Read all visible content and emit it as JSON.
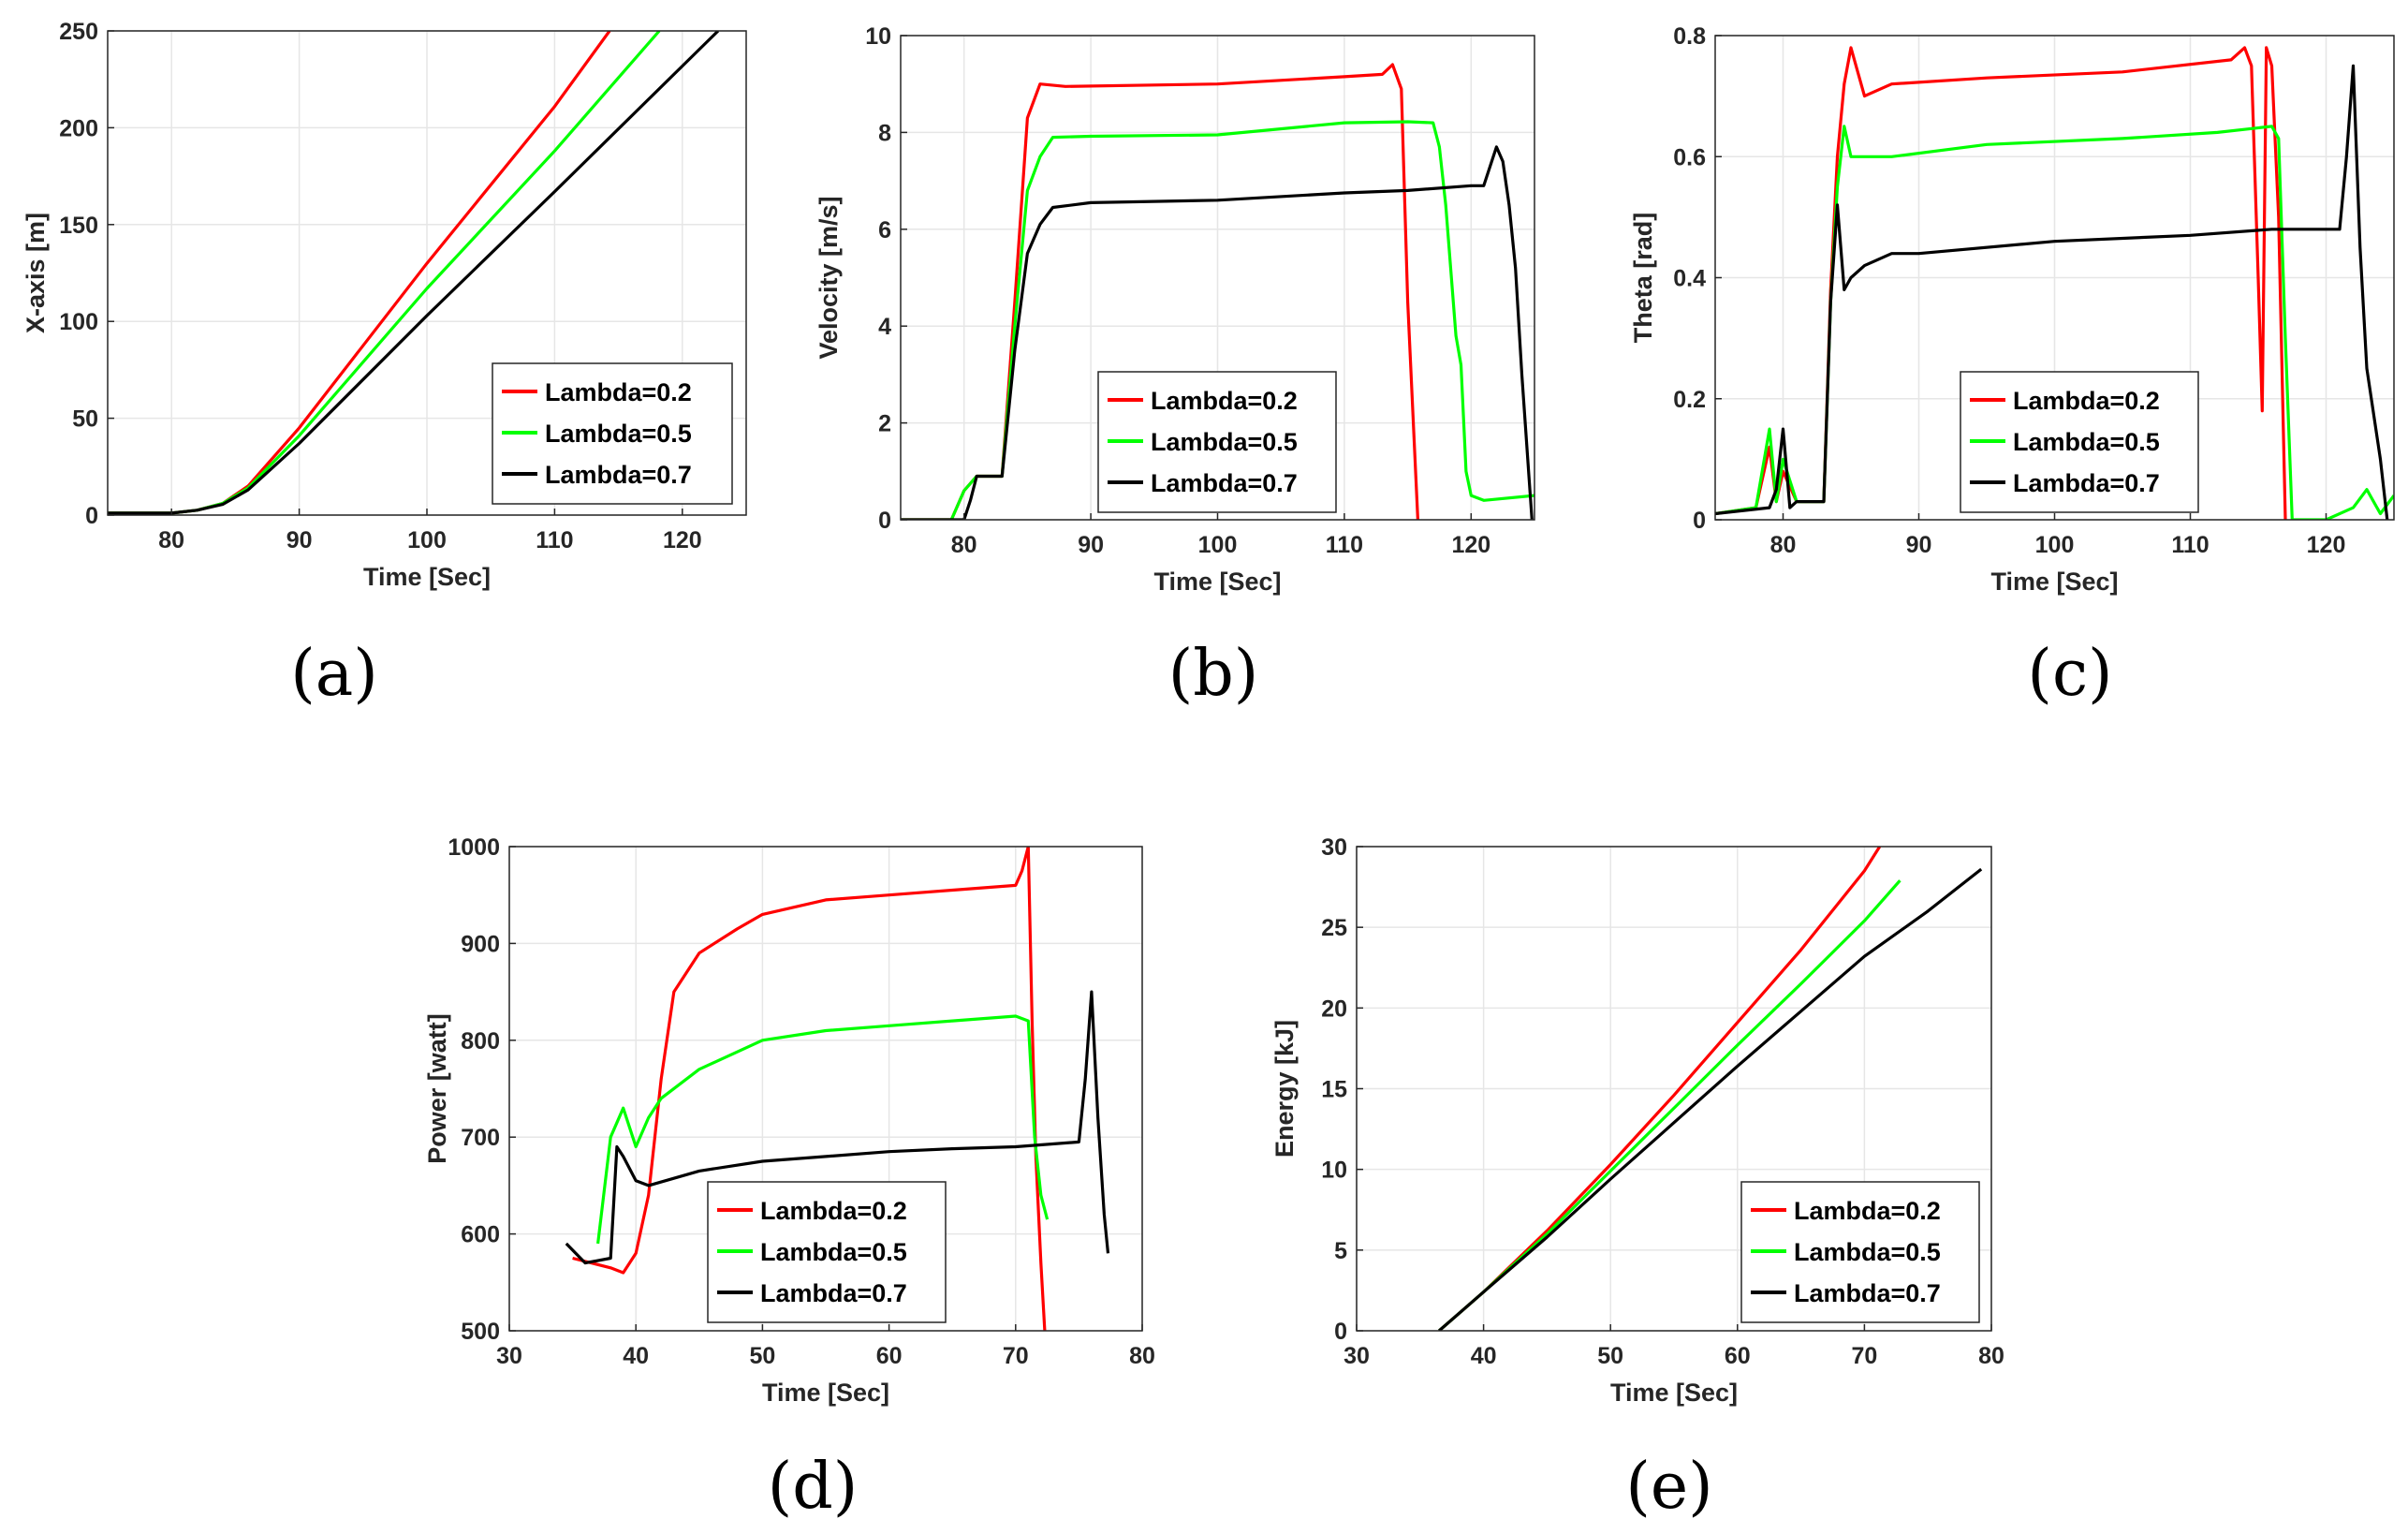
{
  "colors": {
    "red": "#ff0000",
    "green": "#00ff00",
    "black": "#000000",
    "axis": "#262626",
    "grid": "#e6e6e6"
  },
  "chart_data": [
    {
      "id": "a",
      "panel_label": "(a)",
      "type": "line",
      "xlabel": "Time [Sec]",
      "ylabel": "X-axis [m]",
      "xlim": [
        75,
        125
      ],
      "ylim": [
        0,
        250
      ],
      "xticks": [
        80,
        90,
        100,
        110,
        120
      ],
      "yticks": [
        0,
        50,
        100,
        150,
        200,
        250
      ],
      "legend": "bottom-right",
      "series": [
        {
          "name": "Lambda=0.2",
          "color": "red",
          "x": [
            75,
            80,
            82,
            84,
            86,
            90,
            100,
            110,
            114.3
          ],
          "y": [
            1,
            1,
            2.5,
            6,
            15,
            45,
            130,
            211,
            250
          ]
        },
        {
          "name": "Lambda=0.5",
          "color": "green",
          "x": [
            75,
            80,
            82,
            84,
            86,
            90,
            100,
            110,
            118.2
          ],
          "y": [
            1,
            1,
            2.5,
            6,
            14,
            41,
            117,
            188,
            250
          ]
        },
        {
          "name": "Lambda=0.7",
          "color": "black",
          "x": [
            75,
            80,
            82,
            84,
            86,
            90,
            100,
            110,
            122.8
          ],
          "y": [
            1,
            1,
            2.5,
            5.5,
            13,
            37,
            103,
            167,
            250
          ]
        }
      ]
    },
    {
      "id": "b",
      "panel_label": "(b)",
      "type": "line",
      "xlabel": "Time [Sec]",
      "ylabel": "Velocity [m/s]",
      "xlim": [
        75,
        125
      ],
      "ylim": [
        0,
        10
      ],
      "xticks": [
        80,
        90,
        100,
        110,
        120
      ],
      "yticks": [
        0,
        2,
        4,
        6,
        8,
        10
      ],
      "legend": "bottom-right",
      "series": [
        {
          "name": "Lambda=0.2",
          "color": "red",
          "x": [
            75,
            79,
            80,
            81,
            83,
            84,
            85,
            86,
            88,
            100,
            110,
            113,
            113.8,
            114.5,
            115,
            115.8
          ],
          "y": [
            0,
            0,
            0.6,
            0.9,
            0.9,
            4.5,
            8.3,
            9.0,
            8.95,
            9.0,
            9.15,
            9.2,
            9.4,
            8.9,
            4.5,
            0
          ]
        },
        {
          "name": "Lambda=0.5",
          "color": "green",
          "x": [
            75,
            79,
            80,
            81,
            83,
            84,
            85,
            86,
            87,
            90,
            100,
            110,
            115,
            117,
            117.5,
            118,
            118.8,
            119.2,
            119.6,
            120,
            121,
            125
          ],
          "y": [
            0,
            0,
            0.6,
            0.9,
            0.9,
            4.0,
            6.8,
            7.5,
            7.9,
            7.92,
            7.95,
            8.2,
            8.22,
            8.2,
            7.7,
            6.5,
            3.8,
            3.2,
            1.0,
            0.5,
            0.4,
            0.5
          ]
        },
        {
          "name": "Lambda=0.7",
          "color": "black",
          "x": [
            75,
            80,
            80.5,
            81,
            83,
            84,
            85,
            86,
            87,
            90,
            100,
            110,
            115,
            120,
            121,
            122,
            122.5,
            123,
            123.5,
            124,
            124.8
          ],
          "y": [
            0,
            0,
            0.4,
            0.9,
            0.9,
            3.5,
            5.5,
            6.1,
            6.45,
            6.55,
            6.6,
            6.75,
            6.8,
            6.9,
            6.9,
            7.7,
            7.4,
            6.5,
            5.2,
            3.0,
            0
          ]
        }
      ]
    },
    {
      "id": "c",
      "panel_label": "(c)",
      "type": "line",
      "xlabel": "Time [Sec]",
      "ylabel": "Theta [rad]",
      "xlim": [
        75,
        125
      ],
      "ylim": [
        0,
        0.8
      ],
      "xticks": [
        80,
        90,
        100,
        110,
        120
      ],
      "yticks": [
        0,
        0.2,
        0.4,
        0.6,
        0.8
      ],
      "legend": "bottom-right",
      "series": [
        {
          "name": "Lambda=0.2",
          "color": "red",
          "x": [
            75,
            78,
            79,
            79.5,
            80,
            81,
            83,
            83.5,
            84,
            84.5,
            85,
            86,
            88,
            95,
            105,
            113,
            114,
            114.5,
            115,
            115.3,
            115.6,
            116,
            116.5,
            117
          ],
          "y": [
            0.01,
            0.02,
            0.12,
            0.03,
            0.08,
            0.03,
            0.03,
            0.38,
            0.6,
            0.72,
            0.78,
            0.7,
            0.72,
            0.73,
            0.74,
            0.76,
            0.78,
            0.75,
            0.4,
            0.18,
            0.78,
            0.75,
            0.5,
            0
          ]
        },
        {
          "name": "Lambda=0.5",
          "color": "green",
          "x": [
            75,
            78,
            79,
            79.5,
            80,
            81,
            83,
            83.5,
            84,
            84.5,
            85,
            86,
            88,
            95,
            105,
            112,
            116,
            116.5,
            117,
            117.5,
            120,
            122,
            123,
            124,
            125
          ],
          "y": [
            0.01,
            0.02,
            0.15,
            0.03,
            0.1,
            0.03,
            0.03,
            0.36,
            0.55,
            0.65,
            0.6,
            0.6,
            0.6,
            0.62,
            0.63,
            0.64,
            0.65,
            0.63,
            0.3,
            0,
            0,
            0.02,
            0.05,
            0.01,
            0.04
          ]
        },
        {
          "name": "Lambda=0.7",
          "color": "black",
          "x": [
            75,
            79,
            79.5,
            80,
            80.5,
            81,
            83,
            83.5,
            84,
            84.5,
            85,
            86,
            88,
            90,
            100,
            110,
            116,
            121,
            121.5,
            122,
            122.5,
            123,
            124,
            124.5
          ],
          "y": [
            0.01,
            0.02,
            0.05,
            0.15,
            0.02,
            0.03,
            0.03,
            0.36,
            0.52,
            0.38,
            0.4,
            0.42,
            0.44,
            0.44,
            0.46,
            0.47,
            0.48,
            0.48,
            0.6,
            0.75,
            0.45,
            0.25,
            0.1,
            0
          ]
        }
      ]
    },
    {
      "id": "d",
      "panel_label": "(d)",
      "type": "line",
      "xlabel": "Time [Sec]",
      "ylabel": "Power [watt]",
      "xlim": [
        30,
        80
      ],
      "ylim": [
        500,
        1000
      ],
      "xticks": [
        30,
        40,
        50,
        60,
        70,
        80
      ],
      "yticks": [
        500,
        600,
        700,
        800,
        900,
        1000
      ],
      "legend": "bottom-right",
      "series": [
        {
          "name": "Lambda=0.2",
          "color": "red",
          "x": [
            35,
            38,
            39,
            40,
            41,
            42,
            43,
            45,
            48,
            50,
            55,
            60,
            65,
            70,
            70.5,
            71,
            71.3,
            71.6,
            72,
            72.3
          ],
          "y": [
            575,
            565,
            560,
            580,
            640,
            760,
            850,
            890,
            915,
            930,
            945,
            950,
            955,
            960,
            975,
            1000,
            820,
            680,
            570,
            500
          ]
        },
        {
          "name": "Lambda=0.5",
          "color": "green",
          "x": [
            37,
            38,
            39,
            40,
            41,
            42,
            45,
            50,
            55,
            60,
            65,
            70,
            71,
            71.5,
            72,
            72.5
          ],
          "y": [
            590,
            700,
            730,
            690,
            720,
            740,
            770,
            800,
            810,
            815,
            820,
            825,
            820,
            700,
            640,
            615
          ]
        },
        {
          "name": "Lambda=0.7",
          "color": "black",
          "x": [
            34.5,
            36,
            38,
            38.5,
            39,
            40,
            41,
            45,
            50,
            55,
            60,
            65,
            70,
            75,
            75.5,
            76,
            76.5,
            77,
            77.3
          ],
          "y": [
            590,
            570,
            575,
            690,
            680,
            655,
            650,
            665,
            675,
            680,
            685,
            688,
            690,
            695,
            760,
            850,
            720,
            620,
            580
          ]
        }
      ]
    },
    {
      "id": "e",
      "panel_label": "(e)",
      "type": "line",
      "xlabel": "Time [Sec]",
      "ylabel": "Energy [kJ]",
      "xlim": [
        30,
        80
      ],
      "ylim": [
        0,
        30
      ],
      "xticks": [
        30,
        40,
        50,
        60,
        70,
        80
      ],
      "yticks": [
        0,
        5,
        10,
        15,
        20,
        25,
        30
      ],
      "legend": "bottom-right",
      "series": [
        {
          "name": "Lambda=0.2",
          "color": "red",
          "x": [
            36.5,
            40,
            45,
            50,
            55,
            60,
            65,
            70,
            71.2
          ],
          "y": [
            0,
            2.4,
            6.2,
            10.3,
            14.6,
            19.1,
            23.6,
            28.5,
            30
          ]
        },
        {
          "name": "Lambda=0.5",
          "color": "green",
          "x": [
            36.5,
            40,
            45,
            50,
            55,
            60,
            65,
            70,
            72.8
          ],
          "y": [
            0,
            2.4,
            6.0,
            9.9,
            13.8,
            17.7,
            21.5,
            25.4,
            27.9
          ]
        },
        {
          "name": "Lambda=0.7",
          "color": "black",
          "x": [
            36.5,
            40,
            45,
            50,
            55,
            60,
            65,
            70,
            75,
            79.2
          ],
          "y": [
            0,
            2.4,
            5.8,
            9.4,
            12.9,
            16.4,
            19.8,
            23.2,
            26.0,
            28.6
          ]
        }
      ]
    }
  ]
}
